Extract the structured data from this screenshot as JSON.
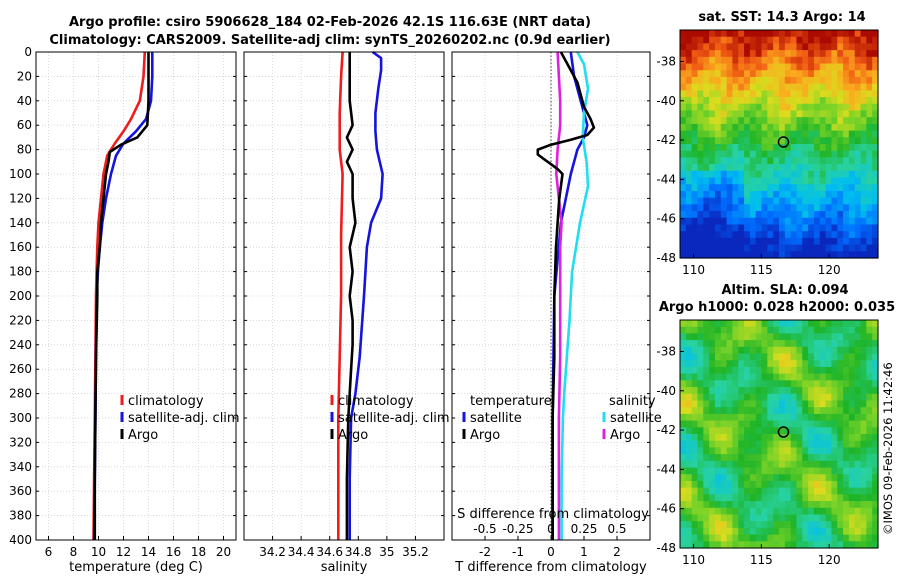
{
  "titles": {
    "line1": "Argo profile: csiro 5906628_184 02-Feb-2026 42.1S 116.63E (NRT data)",
    "line2": "Climatology: CARS2009. Satellite-adj clim: synTS_20260202.nc (0.9d earlier)"
  },
  "stamp": "©IMOS 09-Feb-2026 11:42:46",
  "colors": {
    "climatology": "#ee1c1c",
    "satellite_adj": "#1414dd",
    "argo": "#000000",
    "sat_salinity": "#22ddee",
    "argo_salinity_diff": "#dd22dd"
  },
  "chart_data": [
    {
      "type": "line",
      "name": "temperature-profile",
      "xlabel": "temperature (deg C)",
      "ylabel": "",
      "xlim": [
        5,
        21
      ],
      "ylim": [
        400,
        0
      ],
      "xticks": [
        6,
        8,
        10,
        12,
        14,
        16,
        18,
        20
      ],
      "yticks": [
        0,
        20,
        40,
        60,
        80,
        100,
        120,
        140,
        160,
        180,
        200,
        220,
        240,
        260,
        280,
        300,
        320,
        340,
        360,
        380,
        400
      ],
      "grid": true,
      "legend": {
        "placement": "lower-right",
        "entries": [
          "climatology",
          "satellite-adj. clim",
          "Argo"
        ]
      },
      "series": [
        {
          "name": "climatology",
          "color_key": "climatology",
          "depth": [
            0,
            20,
            40,
            55,
            65,
            75,
            85,
            100,
            120,
            140,
            160,
            180,
            200,
            250,
            300,
            350,
            400
          ],
          "values": [
            13.7,
            13.6,
            13.3,
            12.6,
            12.0,
            11.3,
            10.7,
            10.4,
            10.2,
            10.0,
            9.9,
            9.85,
            9.8,
            9.75,
            9.7,
            9.65,
            9.6
          ]
        },
        {
          "name": "satellite-adj. clim",
          "color_key": "satellite_adj",
          "depth": [
            0,
            20,
            40,
            55,
            65,
            75,
            85,
            100,
            120,
            140,
            160,
            180,
            200,
            250,
            300,
            350,
            400
          ],
          "values": [
            14.3,
            14.3,
            14.2,
            13.8,
            13.0,
            12.0,
            11.4,
            11.0,
            10.6,
            10.3,
            10.1,
            9.95,
            9.85,
            9.8,
            9.75,
            9.7,
            9.65
          ]
        },
        {
          "name": "Argo",
          "color_key": "argo",
          "depth": [
            0,
            20,
            40,
            60,
            70,
            76,
            82,
            90,
            100,
            120,
            140,
            160,
            180,
            200,
            250,
            300,
            350,
            400
          ],
          "values": [
            14.0,
            14.0,
            14.0,
            13.9,
            13.1,
            11.8,
            10.9,
            10.8,
            10.6,
            10.4,
            10.2,
            10.1,
            9.9,
            9.9,
            9.8,
            9.75,
            9.7,
            9.7
          ]
        }
      ]
    },
    {
      "type": "line",
      "name": "salinity-profile",
      "xlabel": "salinity",
      "ylabel": "",
      "xlim": [
        34.0,
        35.4
      ],
      "ylim": [
        400,
        0
      ],
      "xticks": [
        34.2,
        34.4,
        34.6,
        34.8,
        35,
        35.2
      ],
      "xticklabels": [
        "34.2",
        "34.4",
        "34.6",
        "34.8",
        "35",
        "35.2"
      ],
      "grid": true,
      "legend": {
        "placement": "lower-right",
        "entries": [
          "climatology",
          "satellite-adj. clim",
          "Argo"
        ]
      },
      "series": [
        {
          "name": "climatology",
          "color_key": "climatology",
          "depth": [
            0,
            20,
            50,
            80,
            100,
            150,
            200,
            250,
            300,
            350,
            400
          ],
          "values": [
            34.69,
            34.68,
            34.67,
            34.67,
            34.69,
            34.68,
            34.68,
            34.67,
            34.66,
            34.66,
            34.66
          ]
        },
        {
          "name": "satellite-adj. clim",
          "color_key": "satellite_adj",
          "depth": [
            0,
            5,
            15,
            30,
            50,
            65,
            80,
            100,
            120,
            140,
            160,
            200,
            250,
            280,
            300,
            350,
            400
          ],
          "values": [
            34.9,
            34.96,
            34.96,
            34.94,
            34.92,
            34.92,
            34.93,
            34.97,
            34.96,
            34.89,
            34.86,
            34.84,
            34.81,
            34.78,
            34.75,
            34.74,
            34.74
          ]
        },
        {
          "name": "Argo",
          "color_key": "argo",
          "depth": [
            0,
            20,
            40,
            60,
            70,
            80,
            90,
            100,
            120,
            140,
            160,
            180,
            200,
            220,
            240,
            260,
            280,
            300,
            350,
            400
          ],
          "values": [
            34.74,
            34.74,
            34.74,
            34.76,
            34.72,
            34.76,
            34.72,
            34.76,
            34.76,
            34.78,
            34.74,
            34.76,
            34.74,
            34.76,
            34.76,
            34.75,
            34.74,
            34.73,
            34.72,
            34.72
          ]
        }
      ]
    },
    {
      "type": "line",
      "name": "difference-from-climatology",
      "xlabel": "T difference from climatology",
      "x2label": "S difference from climatology",
      "xlim": [
        -3,
        3
      ],
      "x2lim": [
        -0.75,
        0.75
      ],
      "ylim": [
        400,
        0
      ],
      "xticks": [
        -2,
        -1,
        0,
        1,
        2
      ],
      "x2ticks": [
        -0.5,
        -0.25,
        0,
        0.25,
        0.5
      ],
      "x2ticklabels": [
        "-0.5",
        "-0.25",
        "0",
        "0.25",
        "0.5"
      ],
      "grid": true,
      "legend": {
        "placement": "lower",
        "headers": [
          "temperature",
          "salinity"
        ],
        "entries_left": [
          "satellite",
          "Argo"
        ],
        "entries_right": [
          "satellite",
          "Argo"
        ]
      },
      "series": [
        {
          "name": "temperature satellite",
          "axis": "T",
          "color_key": "satellite_adj",
          "depth": [
            0,
            20,
            40,
            60,
            70,
            80,
            90,
            100,
            140,
            200,
            300,
            400
          ],
          "values": [
            0.6,
            0.7,
            0.9,
            1.1,
            1.0,
            0.8,
            0.7,
            0.6,
            0.3,
            0.1,
            0.05,
            0.05
          ]
        },
        {
          "name": "temperature Argo",
          "axis": "T",
          "color_key": "argo",
          "depth": [
            0,
            5,
            15,
            25,
            35,
            45,
            55,
            62,
            68,
            72,
            76,
            80,
            84,
            88,
            92,
            96,
            100,
            110,
            120,
            140,
            160,
            200,
            250,
            300,
            350,
            400
          ],
          "values": [
            0.3,
            0.4,
            0.6,
            0.8,
            0.9,
            1.0,
            1.2,
            1.3,
            1.1,
            0.6,
            0.0,
            -0.4,
            -0.4,
            -0.2,
            0.0,
            0.2,
            0.35,
            0.3,
            0.25,
            0.2,
            0.15,
            0.1,
            0.1,
            0.05,
            0.05,
            0.05
          ]
        },
        {
          "name": "salinity satellite",
          "axis": "S",
          "color_key": "sat_salinity",
          "depth": [
            0,
            10,
            30,
            50,
            70,
            90,
            110,
            140,
            180,
            220,
            280,
            300,
            350,
            400
          ],
          "values": [
            0.2,
            0.25,
            0.28,
            0.25,
            0.24,
            0.27,
            0.28,
            0.22,
            0.16,
            0.14,
            0.1,
            0.09,
            0.08,
            0.08
          ]
        },
        {
          "name": "salinity Argo",
          "axis": "S",
          "color_key": "argo_salinity_diff",
          "depth": [
            0,
            20,
            40,
            60,
            80,
            100,
            120,
            140,
            160,
            200,
            250,
            300,
            350,
            400
          ],
          "values": [
            0.05,
            0.06,
            0.07,
            0.07,
            0.05,
            0.04,
            0.06,
            0.08,
            0.07,
            0.07,
            0.07,
            0.06,
            0.06,
            0.06
          ]
        }
      ]
    },
    {
      "type": "heatmap",
      "name": "sst-map",
      "title": "sat. SST: 14.3 Argo: 14",
      "xlim": [
        109,
        123.6
      ],
      "ylim": [
        -48,
        -36.4
      ],
      "xticks": [
        110,
        115,
        120
      ],
      "yticks": [
        -38,
        -40,
        -42,
        -44,
        -46,
        -48
      ],
      "marker": {
        "lon": 116.63,
        "lat": -42.1
      }
    },
    {
      "type": "heatmap",
      "name": "sla-map",
      "title_line1": "Altim. SLA: 0.094",
      "title_line2": "Argo h1000: 0.028 h2000: 0.035",
      "xlim": [
        109,
        123.6
      ],
      "ylim": [
        -48,
        -36.4
      ],
      "xticks": [
        110,
        115,
        120
      ],
      "yticks": [
        -38,
        -40,
        -42,
        -44,
        -46,
        -48
      ],
      "marker": {
        "lon": 116.63,
        "lat": -42.1
      }
    }
  ]
}
